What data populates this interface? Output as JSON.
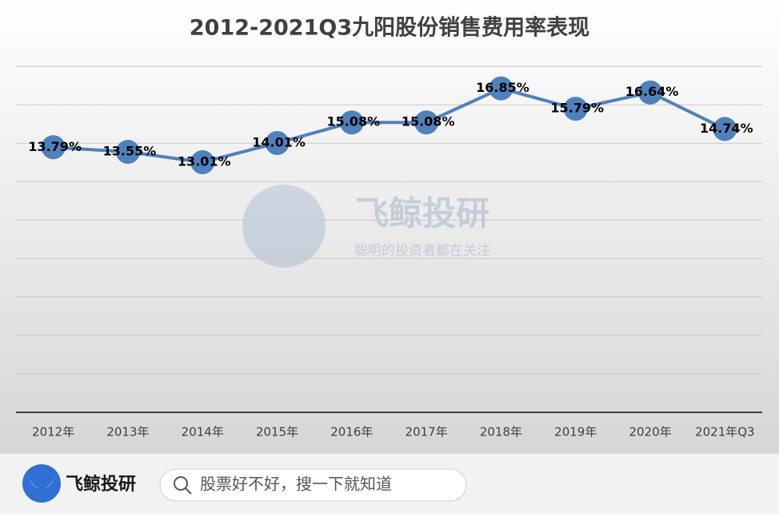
{
  "chart_data": {
    "type": "line",
    "title": "2012-2021Q3九阳股份销售费用率表现",
    "categories": [
      "2012年",
      "2013年",
      "2014年",
      "2015年",
      "2016年",
      "2017年",
      "2018年",
      "2019年",
      "2020年",
      "2021年Q3"
    ],
    "series": [
      {
        "name": "销售费用率",
        "color": "#4f81bd",
        "values": [
          13.79,
          13.55,
          13.01,
          14.01,
          15.08,
          15.08,
          16.85,
          15.79,
          16.64,
          14.74
        ],
        "value_labels": [
          "13.79%",
          "13.55%",
          "13.01%",
          "14.01%",
          "15.08%",
          "15.08%",
          "16.85%",
          "15.79%",
          "16.64%",
          "14.74%"
        ]
      }
    ],
    "ylim": [
      0,
      18
    ],
    "yticks": [
      0,
      2,
      4,
      6,
      8,
      10,
      12,
      14,
      16,
      18
    ],
    "grid": true
  },
  "watermark": {
    "brand": "飞鲸投研",
    "slogan": "聪明的投资者都在关注"
  },
  "footer": {
    "brand": "飞鲸投研",
    "search_placeholder": "股票好不好，搜一下就知道"
  }
}
